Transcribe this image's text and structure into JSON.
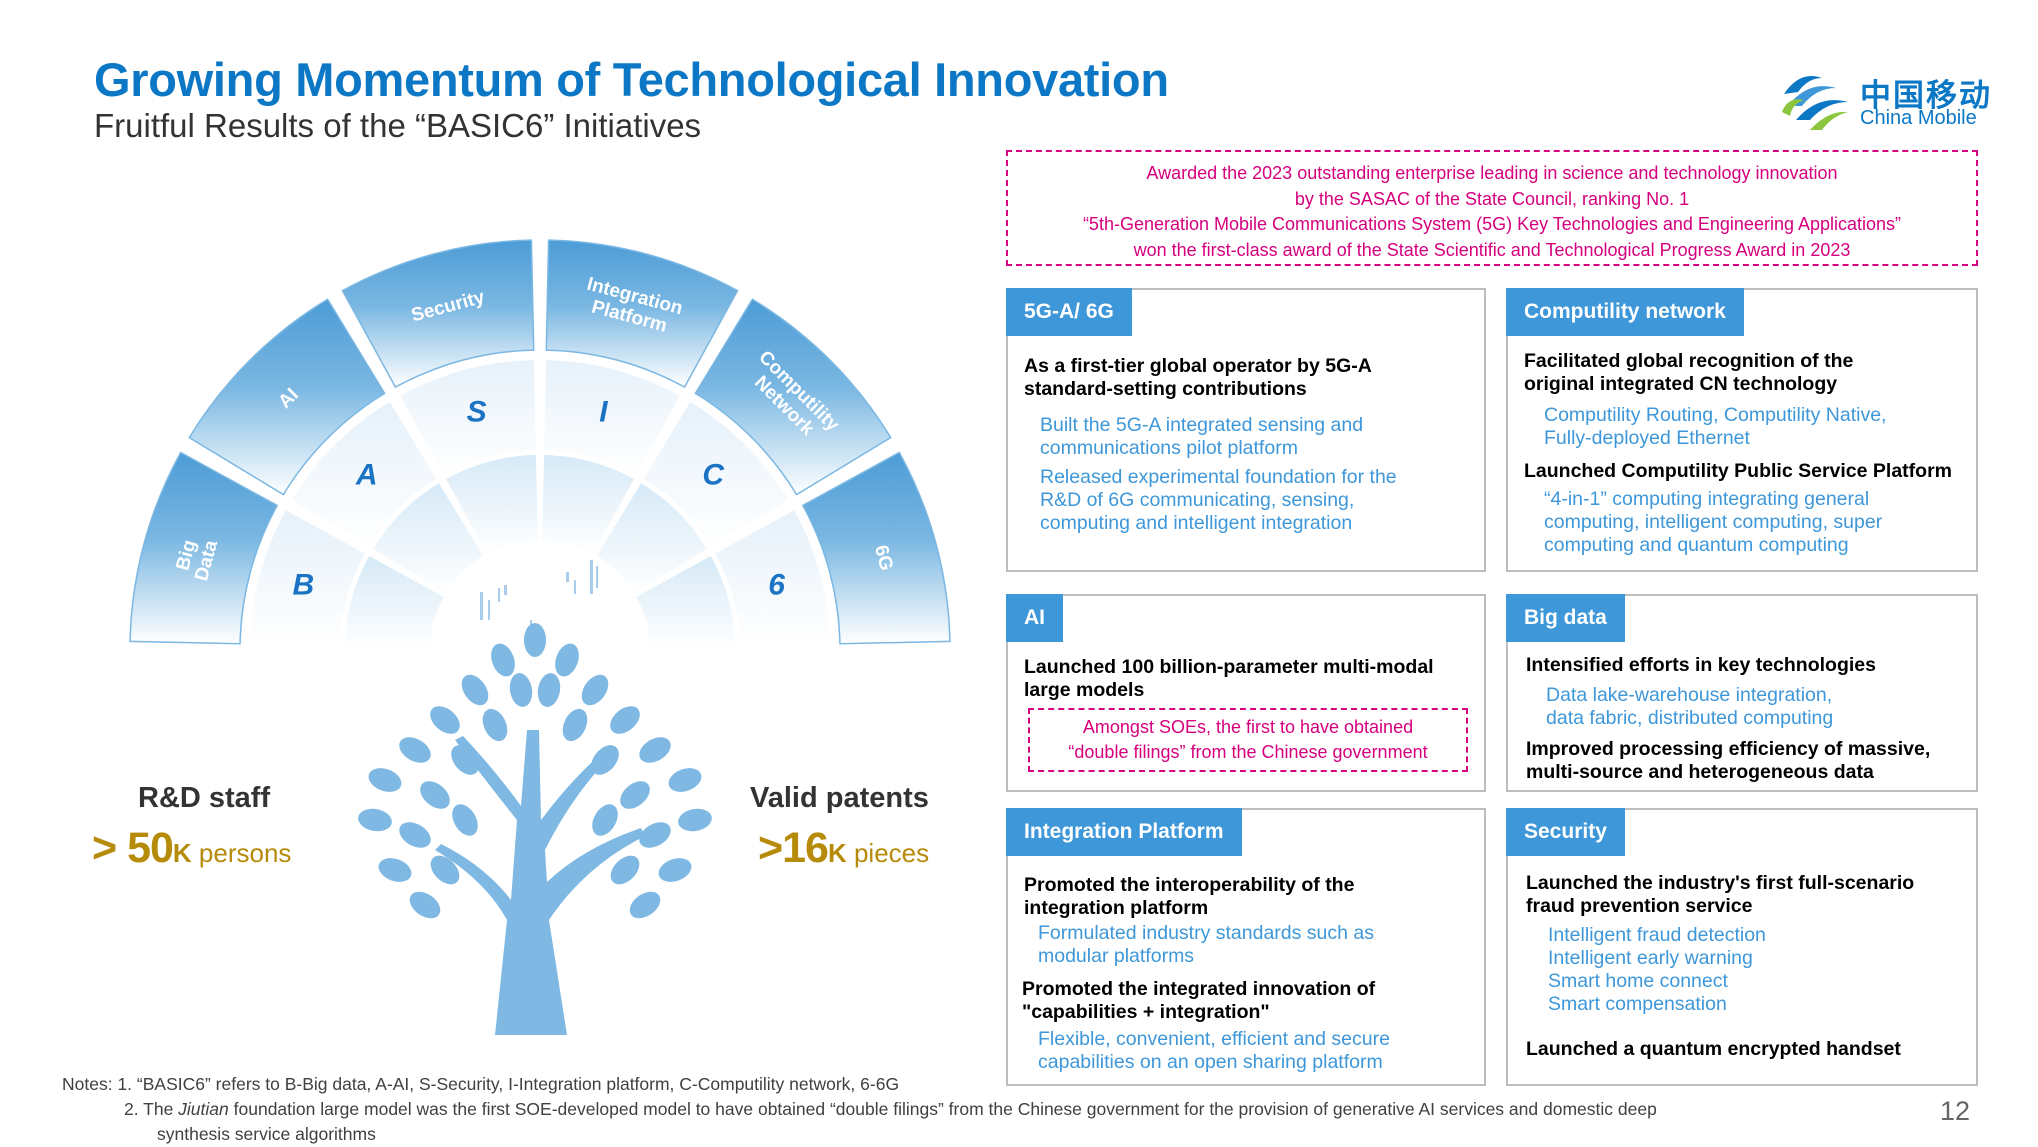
{
  "title": "Growing Momentum of Technological Innovation",
  "subtitle": "Fruitful Results of the “BASIC6” Initiatives",
  "logo": {
    "cn": "中国移动",
    "en": "China Mobile"
  },
  "award": {
    "line1": "Awarded the 2023 outstanding enterprise leading in science and technology innovation",
    "line2": "by the SASAC of the State Council, ranking No. 1",
    "line3": "“5th-Generation Mobile Communications System (5G) Key Technologies and Engineering Applications”",
    "line4": "won the first-class award of the State Scientific and Technological Progress Award in 2023"
  },
  "arc": {
    "outer": [
      "Big Data",
      "AI",
      "Security",
      "Integration Platform",
      "Computility Network",
      "6G"
    ],
    "letters": [
      "B",
      "A",
      "S",
      "I",
      "C",
      "6"
    ]
  },
  "stats": {
    "rd": {
      "label": "R&D staff",
      "prefix": "> ",
      "value": "50",
      "k": "K",
      "unit": " persons"
    },
    "patents": {
      "label": "Valid patents",
      "prefix": ">",
      "value": "16",
      "k": "K",
      "unit": " pieces"
    }
  },
  "boxes": {
    "g5": {
      "tag": "5G-A/ 6G",
      "h1a": "As a first-tier global operator by 5G-A",
      "h1b": "standard-setting contributions",
      "b1a": "Built the 5G-A integrated sensing and",
      "b1b": "communications pilot platform",
      "b2a": "Released experimental foundation for the",
      "b2b": "R&D of 6G communicating, sensing,",
      "b2c": "computing and intelligent integration"
    },
    "cn": {
      "tag": "Computility network",
      "h1a": "Facilitated global recognition of the",
      "h1b": "original integrated CN technology",
      "b1a": "Computility Routing, Computility Native,",
      "b1b": "Fully-deployed Ethernet",
      "h2": "Launched Computility Public Service Platform",
      "b2a": "“4-in-1” computing integrating general",
      "b2b": "computing, intelligent computing, super",
      "b2c": "computing and quantum computing"
    },
    "ai": {
      "tag": "AI",
      "h1a": "Launched 100 billion-parameter multi-modal",
      "h1b": "large models",
      "p1": "Amongst SOEs, the first to have obtained",
      "p2": "“double filings” from the Chinese government"
    },
    "bd": {
      "tag": "Big data",
      "h1": "Intensified efforts in key technologies",
      "b1a": "Data lake-warehouse integration,",
      "b1b": "data fabric, distributed computing",
      "h2a": "Improved processing efficiency of massive,",
      "h2b": "multi-source and heterogeneous data"
    },
    "ip": {
      "tag": "Integration Platform",
      "h1a": "Promoted the interoperability of the",
      "h1b": "integration platform",
      "b1a": "Formulated industry standards such as",
      "b1b": "modular platforms",
      "h2a": "Promoted the integrated innovation of",
      "h2b": "\"capabilities + integration\"",
      "b2a": "Flexible, convenient, efficient and secure",
      "b2b": "capabilities on an open sharing platform"
    },
    "sec": {
      "tag": "Security",
      "h1a": "Launched the industry's first full-scenario",
      "h1b": "fraud prevention service",
      "b1": "Intelligent fraud detection",
      "b2": "Intelligent early warning",
      "b3": "Smart home connect",
      "b4": "Smart compensation",
      "h2": "Launched a quantum encrypted handset"
    }
  },
  "notes": {
    "n1": "Notes: 1.  “BASIC6” refers to B-Big data, A-AI, S-Security, I-Integration platform, C-Computility network, 6-6G",
    "n2a": "2.  The ",
    "n2i": "Jiutian",
    "n2b": " foundation large model was the first SOE-developed model to have obtained “double filings” from the Chinese government for the provision of generative AI services and domestic deep",
    "n2c": "synthesis service algorithms"
  },
  "page_number": "12",
  "colors": {
    "accent": "#0b77c5",
    "tag": "#3d97d9",
    "pink": "#d6007e",
    "gold": "#b68b0a",
    "tree": "#7fb9e3"
  },
  "icons": [
    "china-mobile-logo-icon",
    "tree-icon"
  ]
}
